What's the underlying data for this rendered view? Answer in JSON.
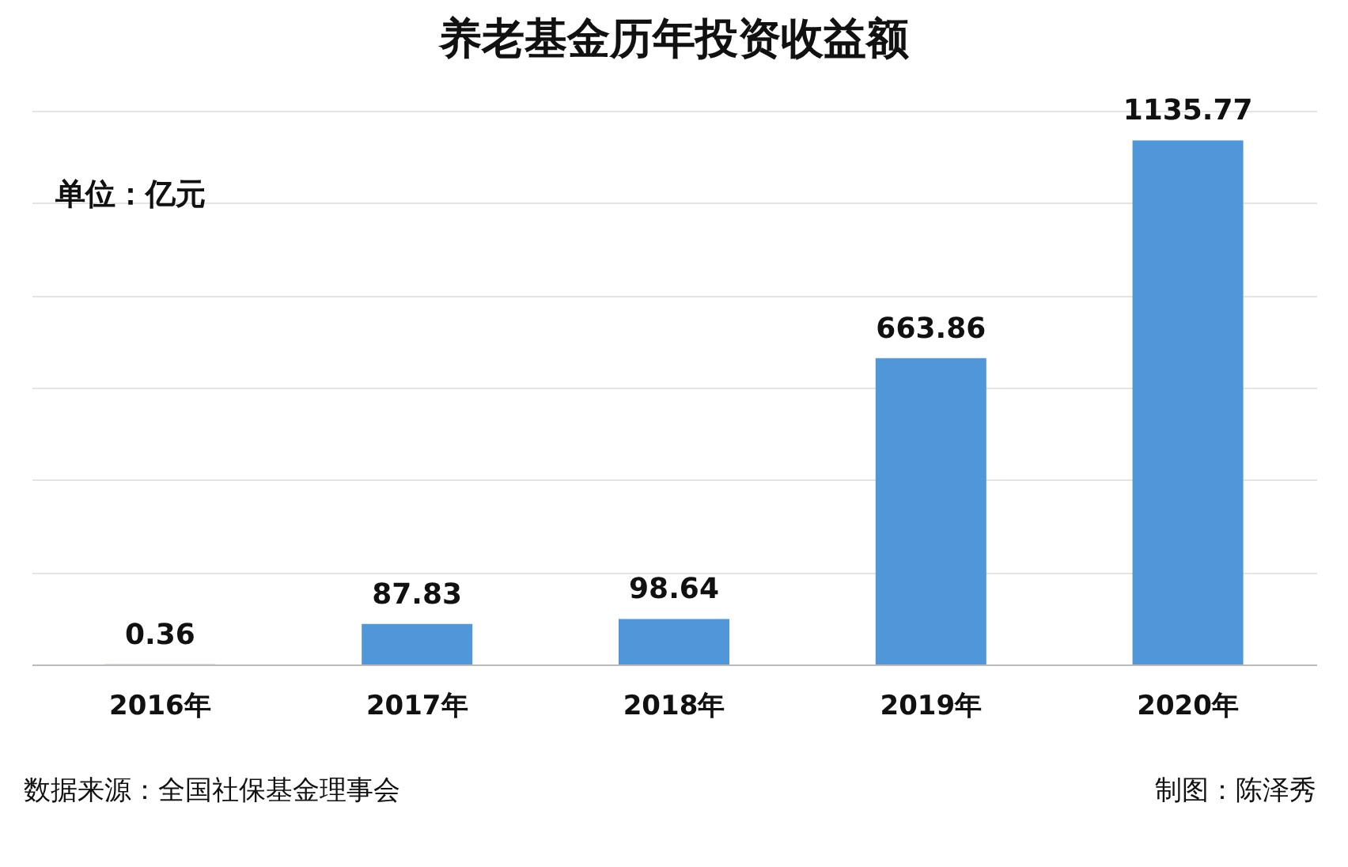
{
  "chart_data": {
    "type": "bar",
    "title": "养老基金历年投资收益额",
    "categories": [
      "2016年",
      "2017年",
      "2018年",
      "2019年",
      "2020年"
    ],
    "values": [
      0.36,
      87.83,
      98.64,
      663.86,
      1135.77
    ],
    "color": "#4f97d9",
    "data_labels": true,
    "ylim": [
      0,
      1200
    ],
    "yticks": [
      {
        "value": 0,
        "label": null
      },
      {
        "value": 200,
        "label": null
      },
      {
        "value": 400,
        "label": null
      },
      {
        "value": 600,
        "label": null
      },
      {
        "value": 800,
        "label": null
      },
      {
        "value": 1000,
        "label": null
      },
      {
        "value": 1200,
        "label": null
      }
    ],
    "grid": "y",
    "tick_labels": "x",
    "annotations": [
      "单位：亿元",
      "数据来源：全国社保基金理事会",
      "制图：陈泽秀"
    ]
  }
}
